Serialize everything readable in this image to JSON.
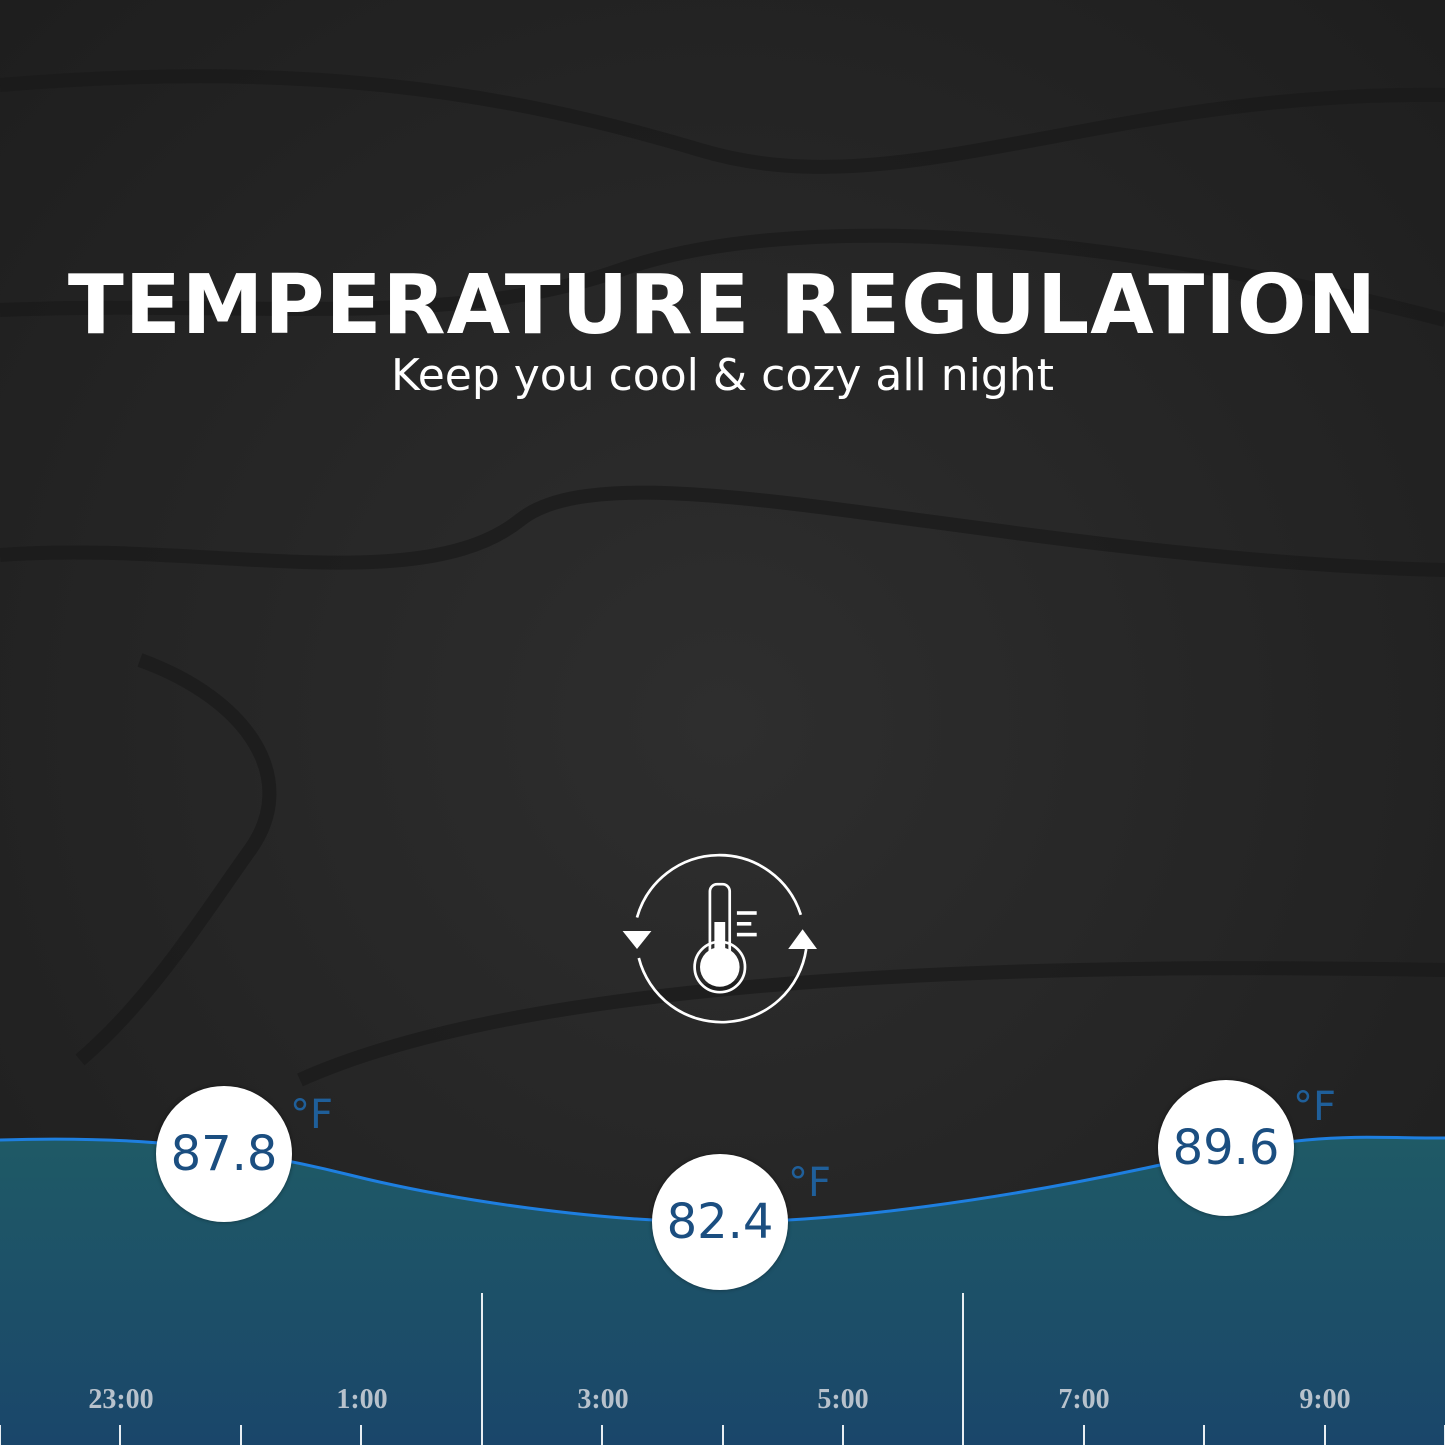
{
  "header": {
    "title": "TEMPERATURE REGULATION",
    "subtitle": "Keep you cool & cozy all night"
  },
  "icon": "thermometer-cycle-icon",
  "colors": {
    "curve": "#1e7fe0",
    "band_top": "#1f5a66",
    "band_bottom": "#1a466a",
    "value_text": "#1b4e80"
  },
  "readings": [
    {
      "value": "87.8",
      "unit": "°F"
    },
    {
      "value": "82.4",
      "unit": "°F"
    },
    {
      "value": "89.6",
      "unit": "°F"
    }
  ],
  "time_axis": [
    "23:00",
    "1:00",
    "3:00",
    "5:00",
    "7:00",
    "9:00"
  ]
}
